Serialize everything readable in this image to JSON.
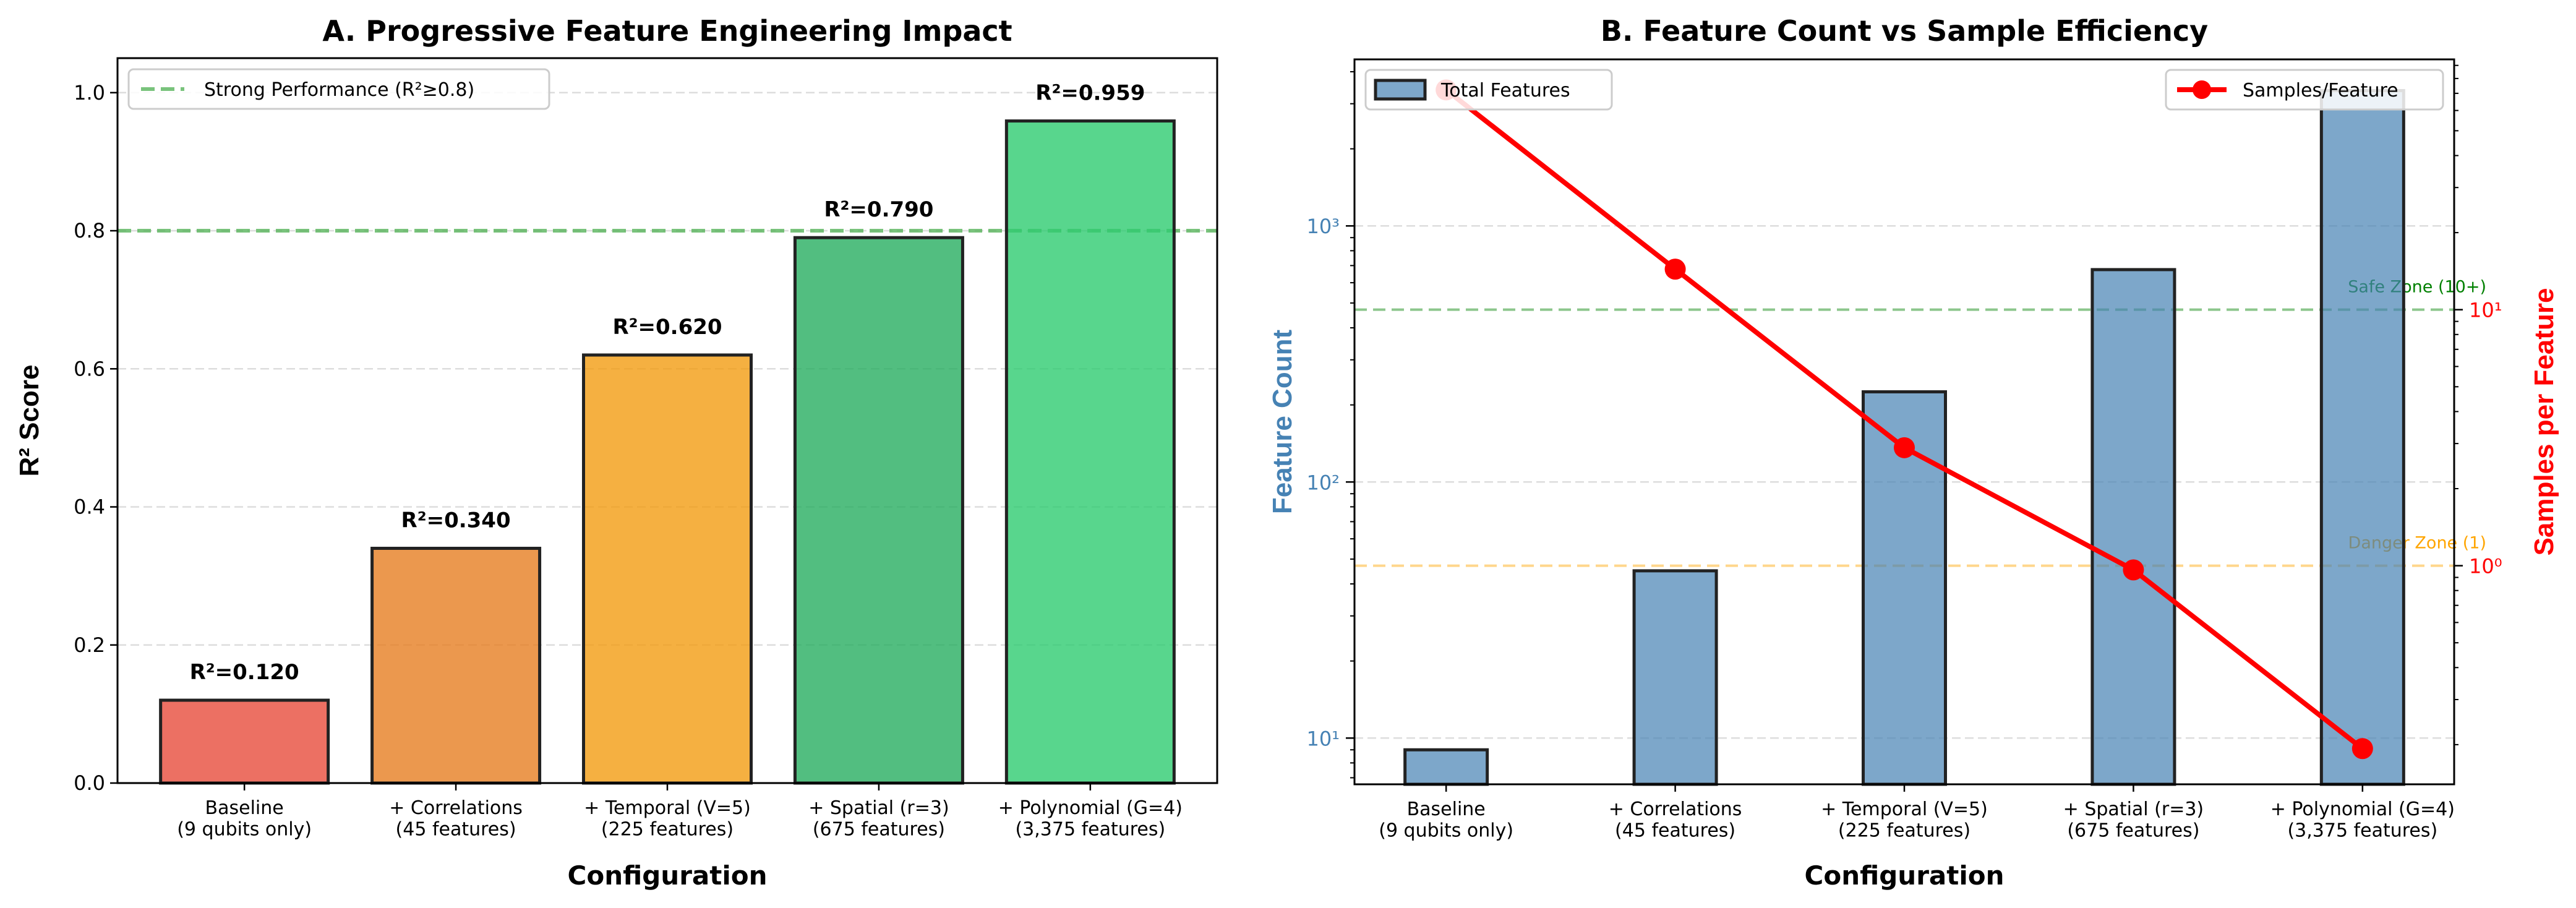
{
  "chart_data": [
    {
      "type": "bar",
      "title": "A. Progressive Feature Engineering Impact",
      "xlabel": "Configuration",
      "ylabel": "R² Score",
      "categories": [
        "Baseline\n(9 qubits only)",
        "+ Correlations\n(45 features)",
        "+ Temporal (V=5)\n(225 features)",
        "+ Spatial (r=3)\n(675 features)",
        "+ Polynomial (G=4)\n(3,375 features)"
      ],
      "values": [
        0.12,
        0.34,
        0.62,
        0.79,
        0.959
      ],
      "data_labels": [
        "R²=0.120",
        "R²=0.340",
        "R²=0.620",
        "R²=0.790",
        "R²=0.959"
      ],
      "colors": [
        "#e74c3c",
        "#e67e22",
        "#f39c12",
        "#27ae60",
        "#2ecc71"
      ],
      "ylim": [
        0,
        1.05
      ],
      "yticks": [
        "0.0",
        "0.2",
        "0.4",
        "0.6",
        "0.8",
        "1.0"
      ],
      "grid": true,
      "reference_line": {
        "value": 0.8,
        "label": "Strong Performance (R²≥0.8)",
        "color": "#4caf50"
      },
      "legend": "top-left"
    },
    {
      "type": "bar+line",
      "title": "B. Feature Count vs Sample Efficiency",
      "xlabel": "Configuration",
      "categories": [
        "Baseline\n(9 qubits only)",
        "+ Correlations\n(45 features)",
        "+ Temporal (V=5)\n(225 features)",
        "+ Spatial (r=3)\n(675 features)",
        "+ Polynomial (G=4)\n(3,375 features)"
      ],
      "left_axis": {
        "label": "Feature Count",
        "scale": "log",
        "ylim": [
          6.6,
          4470
        ],
        "ticks": [
          "10¹",
          "10²",
          "10³"
        ],
        "color": "#4682b4"
      },
      "right_axis": {
        "label": "Samples per Feature",
        "scale": "log",
        "ylim": [
          0.14,
          95
        ],
        "ticks": [
          "10⁰",
          "10¹"
        ],
        "color": "#ff0000"
      },
      "series": [
        {
          "name": "Total Features",
          "type": "bar",
          "axis": "left",
          "values": [
            9,
            45,
            225,
            675,
            3375
          ],
          "color": "#4682b4"
        },
        {
          "name": "Samples/Feature",
          "type": "line",
          "axis": "right",
          "values": [
            72.2,
            14.4,
            2.89,
            0.963,
            0.193
          ],
          "color": "#ff0000"
        }
      ],
      "reference_lines": [
        {
          "axis": "right",
          "value": 10,
          "label": "Safe Zone (10+)",
          "color": "#008000"
        },
        {
          "axis": "right",
          "value": 1,
          "label": "Danger Zone (1)",
          "color": "#ffa500"
        }
      ],
      "grid": true,
      "legend": [
        "top-left",
        "top-right"
      ]
    }
  ]
}
